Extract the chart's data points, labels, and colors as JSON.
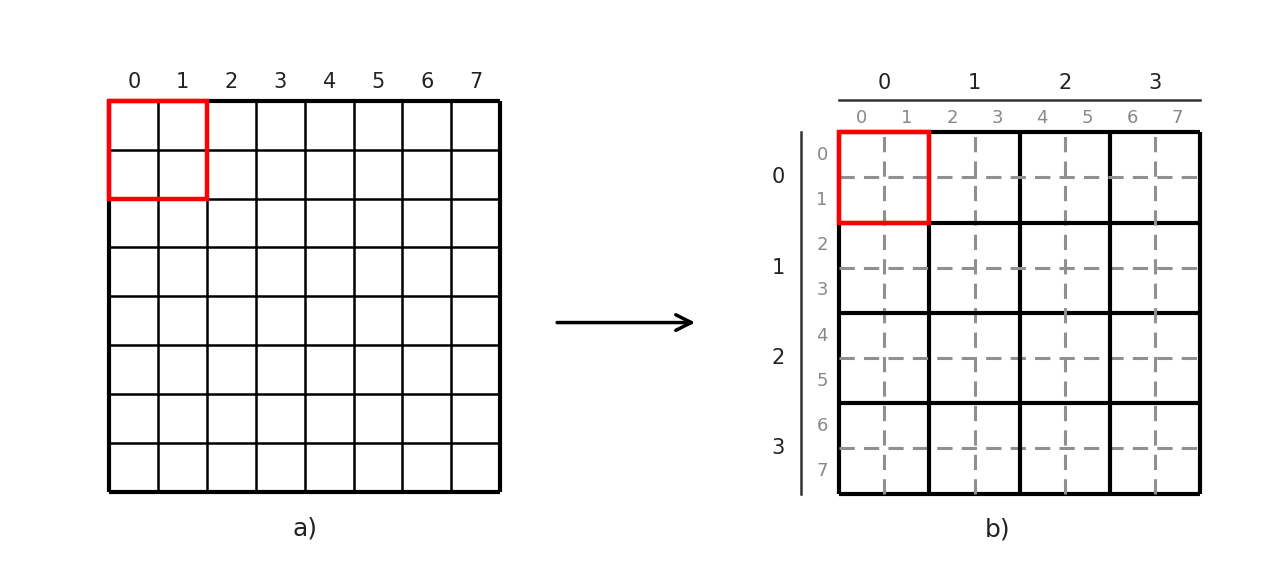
{
  "fig_width": 12.7,
  "fig_height": 5.76,
  "bg_color": "#ffffff",
  "panel_a": {
    "label": "a)",
    "grid_n": 8,
    "col_labels": [
      "0",
      "1",
      "2",
      "3",
      "4",
      "5",
      "6",
      "7"
    ],
    "grid_color": "#000000",
    "grid_lw": 1.8,
    "outer_lw": 3.0
  },
  "panel_b": {
    "label": "b)",
    "grid_n": 8,
    "block_n": 4,
    "col_labels_top": [
      "0",
      "1",
      "2",
      "3"
    ],
    "col_labels_sub": [
      "0",
      "1",
      "2",
      "3",
      "4",
      "5",
      "6",
      "7"
    ],
    "row_labels_outer": [
      "0",
      "1",
      "2",
      "3"
    ],
    "row_labels_inner": [
      "0",
      "1",
      "2",
      "3",
      "4",
      "5",
      "6",
      "7"
    ],
    "outer_grid_color": "#000000",
    "outer_lw": 3.0,
    "inner_dash_color": "#909090",
    "inner_dash_lw": 2.2,
    "inner_solid_lw": 3.0
  },
  "arrow_color": "#000000",
  "label_fontsize": 16,
  "tick_fontsize": 15,
  "tick_fontsize_sub": 13,
  "caption_fontsize": 18
}
